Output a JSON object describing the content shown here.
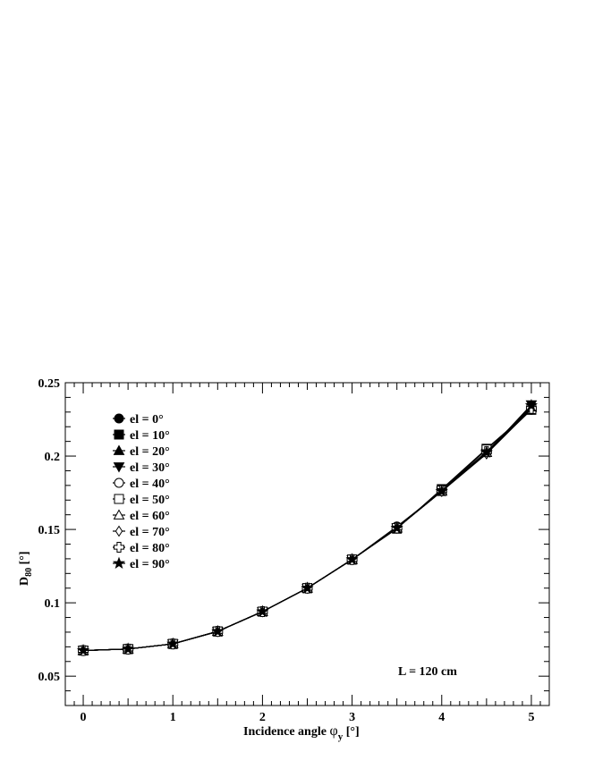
{
  "chart_data": {
    "type": "line",
    "xlabel_main": "Incidence angle ",
    "xlabel_symbol": "φ",
    "xlabel_sub": "y",
    "xlabel_unit": " [°]",
    "ylabel_main": "D",
    "ylabel_sub": "80",
    "ylabel_unit": " [°]",
    "xlim": [
      -0.2,
      5.2
    ],
    "ylim": [
      0.03,
      0.25
    ],
    "xticks": [
      0,
      1,
      2,
      3,
      4,
      5
    ],
    "xtick_labels": [
      "0",
      "1",
      "2",
      "3",
      "4",
      "5"
    ],
    "yticks": [
      0.05,
      0.1,
      0.15,
      0.2,
      0.25
    ],
    "ytick_labels": [
      "0.05",
      "0.1",
      "0.15",
      "0.2",
      "0.25"
    ],
    "annotation": "L = 120 cm",
    "legend_position": "top-left",
    "x": [
      0,
      0.5,
      1,
      1.5,
      2,
      2.5,
      3,
      3.5,
      4,
      4.5,
      5
    ],
    "series": [
      {
        "name": "el = 0°",
        "marker": "circle-filled",
        "values": [
          0.0675,
          0.0685,
          0.072,
          0.0805,
          0.094,
          0.11,
          0.1295,
          0.151,
          0.1765,
          0.2025,
          0.2315
        ]
      },
      {
        "name": "el = 10°",
        "marker": "square-filled",
        "values": [
          0.0675,
          0.0685,
          0.072,
          0.0805,
          0.094,
          0.11,
          0.1295,
          0.1505,
          0.1775,
          0.205,
          0.2315
        ]
      },
      {
        "name": "el = 20°",
        "marker": "triangle-up-filled",
        "values": [
          0.0675,
          0.0685,
          0.072,
          0.0805,
          0.094,
          0.11,
          0.1295,
          0.151,
          0.1765,
          0.2025,
          0.233
        ]
      },
      {
        "name": "el = 30°",
        "marker": "triangle-down-filled",
        "values": [
          0.0675,
          0.0685,
          0.072,
          0.0805,
          0.094,
          0.11,
          0.1295,
          0.151,
          0.176,
          0.202,
          0.235
        ]
      },
      {
        "name": "el = 40°",
        "marker": "circle-open",
        "values": [
          0.0675,
          0.0685,
          0.072,
          0.0805,
          0.094,
          0.11,
          0.1295,
          0.152,
          0.176,
          0.2025,
          0.2325
        ]
      },
      {
        "name": "el = 50°",
        "marker": "square-open",
        "values": [
          0.0675,
          0.0685,
          0.072,
          0.0805,
          0.094,
          0.11,
          0.1295,
          0.151,
          0.1765,
          0.2045,
          0.232
        ]
      },
      {
        "name": "el = 60°",
        "marker": "triangle-up-open",
        "values": [
          0.0675,
          0.0685,
          0.072,
          0.0805,
          0.094,
          0.11,
          0.1295,
          0.151,
          0.176,
          0.2025,
          0.2335
        ]
      },
      {
        "name": "el = 70°",
        "marker": "diamond-open",
        "values": [
          0.0675,
          0.0685,
          0.072,
          0.0805,
          0.094,
          0.11,
          0.1295,
          0.151,
          0.176,
          0.2015,
          0.232
        ]
      },
      {
        "name": "el = 80°",
        "marker": "cross-open",
        "values": [
          0.0675,
          0.0685,
          0.072,
          0.0805,
          0.094,
          0.11,
          0.1295,
          0.151,
          0.1765,
          0.203,
          0.2325
        ]
      },
      {
        "name": "el = 90°",
        "marker": "star-filled",
        "values": [
          0.0675,
          0.0685,
          0.072,
          0.0805,
          0.094,
          0.11,
          0.1295,
          0.151,
          0.176,
          0.2025,
          0.2345
        ]
      }
    ]
  }
}
